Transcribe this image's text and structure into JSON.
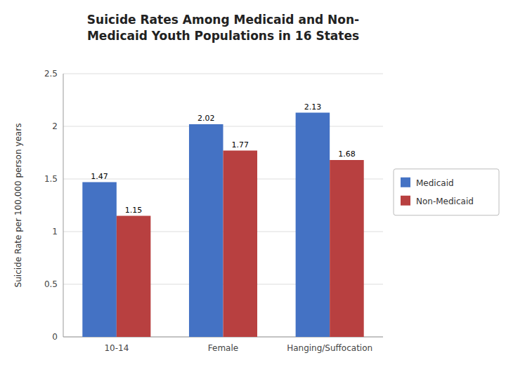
{
  "chart_data": {
    "type": "bar",
    "title": "Suicide Rates Among Medicaid and Non-\nMedicaid Youth Populations in 16 States",
    "categories": [
      "10-14",
      "Female",
      "Hanging/Suffocation"
    ],
    "series": [
      {
        "name": "Medicaid",
        "color": "#4472C4",
        "values": [
          1.47,
          2.02,
          2.13
        ]
      },
      {
        "name": "Non-Medicaid",
        "color": "#B84040",
        "values": [
          1.15,
          1.77,
          1.68
        ]
      }
    ],
    "ylabel": "Suicide Rate per 100,000 person years",
    "ylim": [
      0,
      2.5
    ],
    "yticks": [
      0,
      0.5,
      1,
      1.5,
      2,
      2.5
    ],
    "grid": true,
    "legend": "right",
    "data_labels": true
  }
}
